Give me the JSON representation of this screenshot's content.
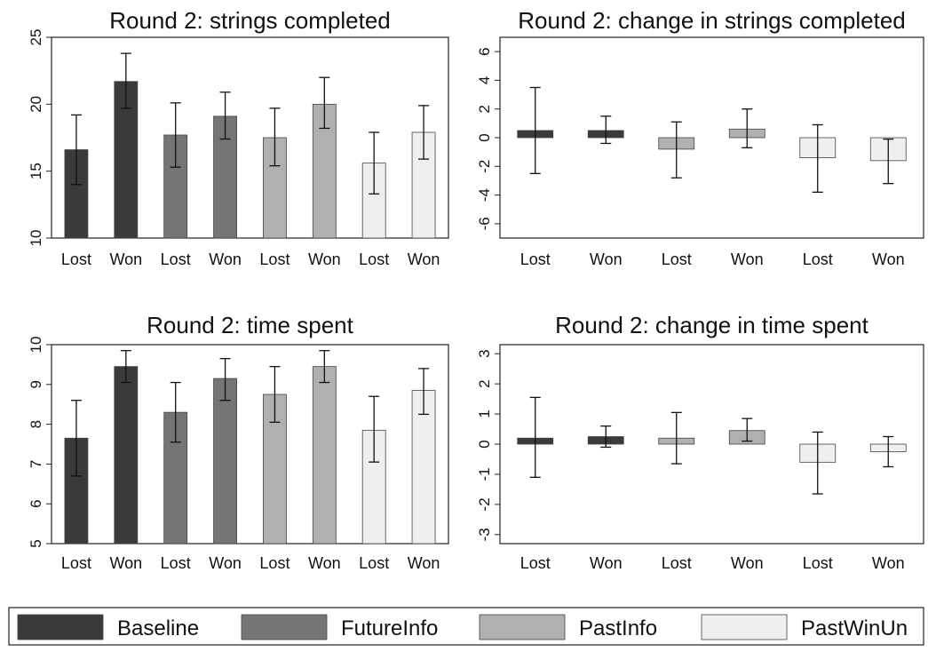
{
  "colors": {
    "Baseline": "#3a3a3a",
    "FutureInfo": "#757575",
    "PastInfo": "#b0b0b0",
    "PastWinUn": "#efefef",
    "axis": "#222222"
  },
  "legend": {
    "placement": "bottom",
    "items": [
      {
        "label": "Baseline",
        "color_key": "Baseline"
      },
      {
        "label": "FutureInfo",
        "color_key": "FutureInfo"
      },
      {
        "label": "PastInfo",
        "color_key": "PastInfo"
      },
      {
        "label": "PastWinUn",
        "color_key": "PastWinUn"
      }
    ]
  },
  "chart_data": [
    {
      "type": "bar",
      "title": "Round 2: strings completed",
      "categories": [
        "Lost",
        "Won",
        "Lost",
        "Won",
        "Lost",
        "Won",
        "Lost",
        "Won"
      ],
      "groups": [
        "Baseline",
        "Baseline",
        "FutureInfo",
        "FutureInfo",
        "PastInfo",
        "PastInfo",
        "PastWinUn",
        "PastWinUn"
      ],
      "base": 10,
      "ylim": [
        10,
        25
      ],
      "yticks": [
        "10",
        "15",
        "20",
        "25"
      ],
      "ytick_values": [
        10,
        15,
        20,
        25
      ],
      "values": [
        16.6,
        21.7,
        17.7,
        19.1,
        17.5,
        20.0,
        15.6,
        17.9
      ],
      "err_low": [
        14.0,
        19.7,
        15.3,
        17.4,
        15.4,
        18.2,
        13.3,
        15.9
      ],
      "err_high": [
        19.2,
        23.8,
        20.1,
        20.9,
        19.7,
        22.0,
        17.9,
        19.9
      ],
      "grid": false
    },
    {
      "type": "bar",
      "title": "Round 2: change in strings completed",
      "categories": [
        "Lost",
        "Won",
        "Lost",
        "Won",
        "Lost",
        "Won"
      ],
      "groups": [
        "Baseline",
        "Baseline",
        "PastInfo",
        "PastInfo",
        "PastWinUn",
        "PastWinUn"
      ],
      "base": 0,
      "ylim": [
        -7,
        7
      ],
      "yticks": [
        "6",
        "4",
        "2",
        "0",
        "-2",
        "-4",
        "-6"
      ],
      "ytick_values": [
        6,
        4,
        2,
        0,
        -2,
        -4,
        -6
      ],
      "values": [
        0.5,
        0.5,
        -0.8,
        0.6,
        -1.4,
        -1.6
      ],
      "err_low": [
        -2.5,
        -0.4,
        -2.8,
        -0.7,
        -3.8,
        -3.2
      ],
      "err_high": [
        3.5,
        1.5,
        1.1,
        2.0,
        0.9,
        -0.1
      ],
      "grid": false
    },
    {
      "type": "bar",
      "title": "Round 2: time spent",
      "categories": [
        "Lost",
        "Won",
        "Lost",
        "Won",
        "Lost",
        "Won",
        "Lost",
        "Won"
      ],
      "groups": [
        "Baseline",
        "Baseline",
        "FutureInfo",
        "FutureInfo",
        "PastInfo",
        "PastInfo",
        "PastWinUn",
        "PastWinUn"
      ],
      "base": 5,
      "ylim": [
        5,
        10
      ],
      "yticks": [
        "5",
        "6",
        "7",
        "8",
        "9",
        "10"
      ],
      "ytick_values": [
        5,
        6,
        7,
        8,
        9,
        10
      ],
      "values": [
        7.65,
        9.45,
        8.3,
        9.15,
        8.75,
        9.45,
        7.85,
        8.85
      ],
      "err_low": [
        6.7,
        9.05,
        7.55,
        8.6,
        8.05,
        9.05,
        7.05,
        8.25
      ],
      "err_high": [
        8.6,
        9.85,
        9.05,
        9.65,
        9.45,
        9.85,
        8.7,
        9.4
      ],
      "grid": false
    },
    {
      "type": "bar",
      "title": "Round 2: change in time spent",
      "categories": [
        "Lost",
        "Won",
        "Lost",
        "Won",
        "Lost",
        "Won"
      ],
      "groups": [
        "Baseline",
        "Baseline",
        "PastInfo",
        "PastInfo",
        "PastWinUn",
        "PastWinUn"
      ],
      "base": 0,
      "ylim": [
        -3.3,
        3.3
      ],
      "yticks": [
        "3",
        "2",
        "1",
        "0",
        "-1",
        "-2",
        "-3"
      ],
      "ytick_values": [
        3,
        2,
        1,
        0,
        -1,
        -2,
        -3
      ],
      "values": [
        0.2,
        0.25,
        0.2,
        0.45,
        -0.6,
        -0.25
      ],
      "err_low": [
        -1.1,
        -0.1,
        -0.65,
        0.1,
        -1.65,
        -0.75
      ],
      "err_high": [
        1.55,
        0.6,
        1.05,
        0.85,
        0.4,
        0.25
      ],
      "grid": false
    }
  ]
}
